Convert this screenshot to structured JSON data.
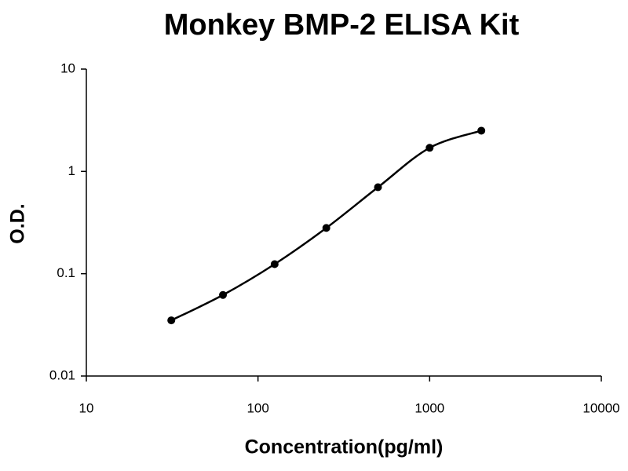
{
  "chart_data": {
    "type": "line",
    "title": "Monkey BMP-2 ELISA Kit",
    "x_label": "Concentration(pg/ml)",
    "y_label": "O.D.",
    "x": [
      31.25,
      62.5,
      125,
      250,
      500,
      1000,
      2000
    ],
    "values": [
      0.035,
      0.062,
      0.124,
      0.28,
      0.7,
      1.7,
      2.5
    ],
    "color": "#000000",
    "xlim": [
      10,
      10000
    ],
    "xticks": [
      10,
      100,
      1000,
      10000
    ],
    "ylim": [
      0.01,
      10
    ],
    "yticks": [
      0.01,
      0.1,
      1,
      10
    ],
    "xscale": "log",
    "yscale": "log",
    "grid": false
  }
}
